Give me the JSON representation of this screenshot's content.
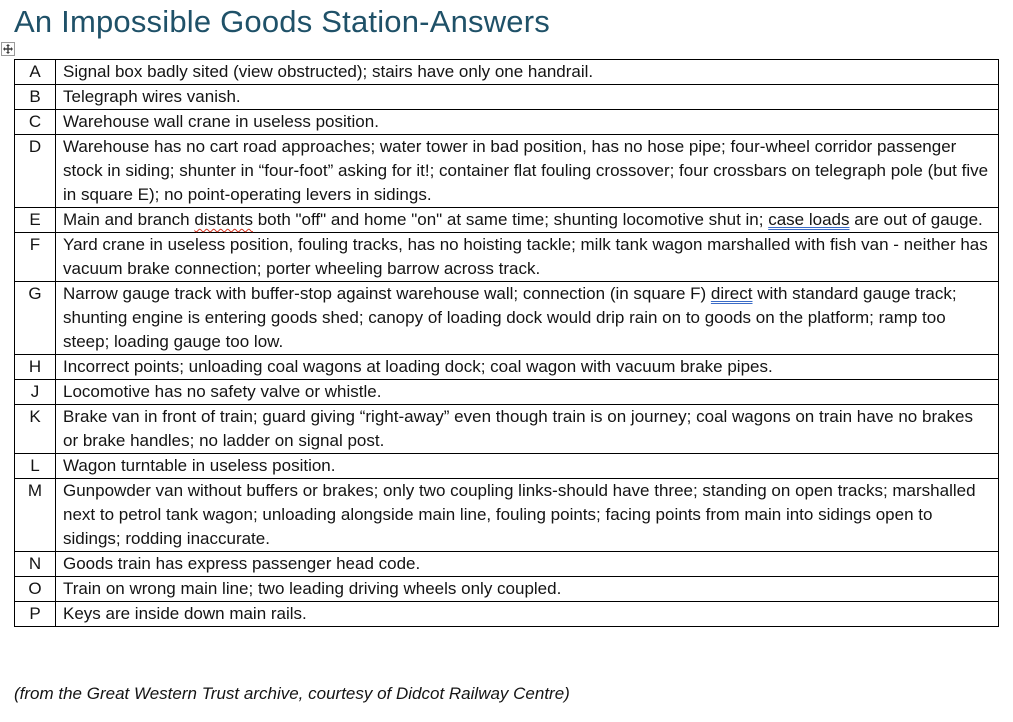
{
  "title": "An Impossible Goods Station-Answers",
  "footer": "(from the Great Western Trust archive, courtesy of Didcot Railway Centre)",
  "icons": {
    "table_move_handle": "move-cross-icon"
  },
  "colors": {
    "title_text": "#1f5168",
    "spell_underline": "#cf2e1c",
    "grammar_underline": "#3b6cc7",
    "table_border": "#000000"
  },
  "table": {
    "rows": [
      {
        "key": "A",
        "segments": [
          {
            "text": "Signal box badly sited (view obstructed); stairs have only one handrail.",
            "mark": "none"
          }
        ]
      },
      {
        "key": "B",
        "segments": [
          {
            "text": "Telegraph wires vanish.",
            "mark": "none"
          }
        ]
      },
      {
        "key": "C",
        "segments": [
          {
            "text": "Warehouse wall crane in useless position.",
            "mark": "none"
          }
        ]
      },
      {
        "key": "D",
        "segments": [
          {
            "text": "Warehouse has no cart road approaches; water tower in bad position, has no hose pipe; four-wheel corridor passenger stock in siding; shunter in “four-foot” asking for it!; container flat fouling crossover; four crossbars on telegraph pole (but five in square E); no point-operating levers in sidings.",
            "mark": "none"
          }
        ]
      },
      {
        "key": "E",
        "segments": [
          {
            "text": "Main and branch ",
            "mark": "none"
          },
          {
            "text": "distants",
            "mark": "spell"
          },
          {
            "text": " both \"off\" and home \"on\" at same time; shunting locomotive shut in; ",
            "mark": "none"
          },
          {
            "text": "case loads",
            "mark": "grammar"
          },
          {
            "text": " are out of gauge.",
            "mark": "none"
          }
        ]
      },
      {
        "key": "F",
        "segments": [
          {
            "text": "Yard crane in useless position, fouling tracks, has no hoisting tackle; milk tank wagon marshalled with fish van - neither has vacuum brake connection; porter wheeling barrow across track.",
            "mark": "none"
          }
        ]
      },
      {
        "key": "G",
        "segments": [
          {
            "text": "Narrow gauge track with buffer-stop against warehouse wall; connection (in square F) ",
            "mark": "none"
          },
          {
            "text": "direct",
            "mark": "grammar"
          },
          {
            "text": " with standard gauge track; shunting engine is entering goods shed; canopy of loading dock would drip rain on to goods on the platform; ramp too steep; loading gauge too low.",
            "mark": "none"
          }
        ]
      },
      {
        "key": "H",
        "segments": [
          {
            "text": "Incorrect points; unloading coal wagons at loading dock; coal wagon with vacuum brake pipes.",
            "mark": "none"
          }
        ]
      },
      {
        "key": "J",
        "segments": [
          {
            "text": "Locomotive has no safety valve or whistle.",
            "mark": "none"
          }
        ]
      },
      {
        "key": "K",
        "segments": [
          {
            "text": "Brake van in front of train; guard giving “right-away” even though train is on journey; coal wagons on train have no brakes or brake handles; no ladder on signal post.",
            "mark": "none"
          }
        ]
      },
      {
        "key": "L",
        "segments": [
          {
            "text": "Wagon turntable in useless position.",
            "mark": "none"
          }
        ]
      },
      {
        "key": "M",
        "segments": [
          {
            "text": "Gunpowder van without buffers or brakes; only two coupling links-should have three; standing on open tracks; marshalled next to petrol tank wagon; unloading alongside main line, fouling points; facing points from main into sidings open to sidings; rodding inaccurate.",
            "mark": "none"
          }
        ]
      },
      {
        "key": "N",
        "segments": [
          {
            "text": "Goods train has express passenger head code.",
            "mark": "none"
          }
        ]
      },
      {
        "key": "O",
        "segments": [
          {
            "text": "Train on wrong main line; two leading driving wheels only coupled.",
            "mark": "none"
          }
        ]
      },
      {
        "key": "P",
        "segments": [
          {
            "text": "Keys are inside down main rails.",
            "mark": "none"
          }
        ]
      }
    ]
  }
}
